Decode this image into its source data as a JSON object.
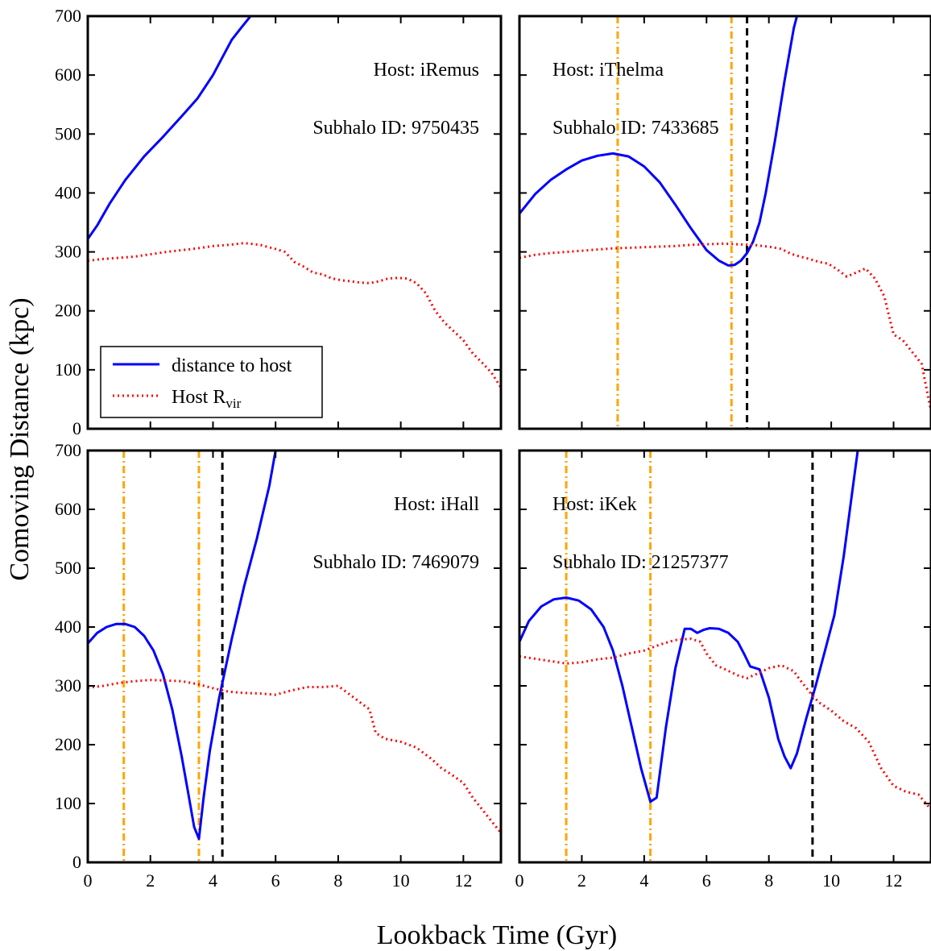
{
  "figure": {
    "xlabel": "Lookback Time (Gyr)",
    "ylabel": "Comoving Distance (kpc)"
  },
  "legend": {
    "items": [
      {
        "label": "distance to host",
        "label_main": "distance to host",
        "label_sub": "",
        "color": "#0000ff",
        "style": "solid"
      },
      {
        "label": "Host Rvir",
        "label_main": "Host R",
        "label_sub": "vir",
        "color": "#ff0000",
        "style": "dotted"
      }
    ]
  },
  "colors": {
    "distance": "#0000ff",
    "rvir": "#ff0000",
    "pericenter": "#ffa500",
    "infall": "#000000"
  },
  "chart_data": [
    {
      "type": "line",
      "host_label": "Host: iRemus",
      "subhalo_label": "Subhalo ID: 9750435",
      "xlim": [
        0,
        13.2
      ],
      "ylim": [
        0,
        700
      ],
      "xticks": [
        0,
        2,
        4,
        6,
        8,
        10,
        12
      ],
      "yticks": [
        0,
        100,
        200,
        300,
        400,
        500,
        600,
        700
      ],
      "series": [
        {
          "name": "distance to host",
          "x": [
            0,
            0.3,
            0.7,
            1.2,
            1.8,
            2.4,
            3.0,
            3.5,
            4.0,
            4.3,
            4.6,
            4.9,
            5.2,
            5.45
          ],
          "y": [
            322,
            345,
            382,
            422,
            462,
            495,
            530,
            560,
            600,
            630,
            660,
            680,
            700,
            720
          ]
        },
        {
          "name": "Host Rvir",
          "x": [
            0,
            0.5,
            1,
            1.5,
            2,
            2.5,
            3,
            3.5,
            4,
            4.5,
            5,
            5.5,
            6,
            6.3,
            6.6,
            6.9,
            7.2,
            7.5,
            7.8,
            8.1,
            8.4,
            8.7,
            9,
            9.3,
            9.6,
            9.9,
            10.2,
            10.5,
            10.8,
            11.1,
            11.4,
            11.7,
            12,
            12.3,
            12.6,
            12.9,
            13.2
          ],
          "y": [
            285,
            288,
            290,
            292,
            296,
            300,
            303,
            306,
            310,
            312,
            315,
            312,
            305,
            300,
            283,
            275,
            265,
            262,
            255,
            252,
            250,
            248,
            247,
            250,
            255,
            256,
            255,
            247,
            230,
            200,
            180,
            165,
            150,
            128,
            112,
            95,
            70
          ]
        }
      ],
      "vlines": []
    },
    {
      "type": "line",
      "host_label": "Host: iThelma",
      "subhalo_label": "Subhalo ID: 7433685",
      "xlim": [
        0,
        13.2
      ],
      "ylim": [
        0,
        700
      ],
      "xticks": [
        0,
        2,
        4,
        6,
        8,
        10,
        12
      ],
      "yticks": [
        0,
        100,
        200,
        300,
        400,
        500,
        600,
        700
      ],
      "series": [
        {
          "name": "distance to host",
          "x": [
            0,
            0.5,
            1.0,
            1.5,
            2.0,
            2.5,
            3.0,
            3.5,
            4.0,
            4.5,
            5.0,
            5.5,
            6.0,
            6.4,
            6.7,
            6.9,
            7.1,
            7.3,
            7.5,
            7.7,
            7.9,
            8.2,
            8.5,
            8.8,
            9.0,
            9.2
          ],
          "y": [
            365,
            398,
            422,
            440,
            455,
            463,
            467,
            462,
            445,
            418,
            380,
            340,
            303,
            285,
            277,
            278,
            285,
            298,
            318,
            350,
            400,
            490,
            590,
            680,
            720,
            760
          ]
        },
        {
          "name": "Host Rvir",
          "x": [
            0,
            0.5,
            1,
            1.5,
            2,
            2.5,
            3,
            3.5,
            4,
            4.5,
            5,
            5.5,
            6,
            6.5,
            7,
            7.5,
            7.8,
            8.1,
            8.4,
            8.7,
            9,
            9.3,
            9.6,
            9.9,
            10.2,
            10.5,
            10.8,
            11.1,
            11.4,
            11.7,
            12,
            12.3,
            12.6,
            12.9,
            13.2
          ],
          "y": [
            290,
            295,
            298,
            300,
            302,
            304,
            306,
            307,
            308,
            309,
            310,
            312,
            313,
            314,
            313,
            312,
            310,
            308,
            305,
            297,
            292,
            288,
            283,
            280,
            270,
            258,
            265,
            272,
            255,
            225,
            160,
            150,
            130,
            110,
            30
          ]
        }
      ],
      "vlines": [
        {
          "x": 3.15,
          "kind": "pericenter"
        },
        {
          "x": 6.8,
          "kind": "pericenter"
        },
        {
          "x": 7.3,
          "kind": "infall"
        }
      ]
    },
    {
      "type": "line",
      "host_label": "Host: iHall",
      "subhalo_label": "Subhalo ID: 7469079",
      "xlim": [
        0,
        13.2
      ],
      "ylim": [
        0,
        700
      ],
      "xticks": [
        0,
        2,
        4,
        6,
        8,
        10,
        12
      ],
      "yticks": [
        0,
        100,
        200,
        300,
        400,
        500,
        600,
        700
      ],
      "series": [
        {
          "name": "distance to host",
          "x": [
            0,
            0.3,
            0.6,
            0.9,
            1.2,
            1.5,
            1.8,
            2.1,
            2.4,
            2.7,
            3.0,
            3.2,
            3.4,
            3.55,
            3.7,
            3.9,
            4.2,
            4.6,
            5.0,
            5.4,
            5.8,
            6.0
          ],
          "y": [
            372,
            390,
            400,
            405,
            405,
            400,
            385,
            360,
            320,
            260,
            180,
            120,
            60,
            40,
            110,
            190,
            280,
            380,
            470,
            550,
            640,
            700
          ]
        },
        {
          "name": "Host Rvir",
          "x": [
            0,
            0.5,
            1,
            1.5,
            2,
            2.5,
            3,
            3.5,
            4,
            4.5,
            5,
            5.5,
            6,
            6.5,
            7,
            7.5,
            8,
            8.5,
            9,
            9.2,
            9.5,
            10,
            10.5,
            11,
            11.3,
            11.6,
            12,
            12.3,
            12.6,
            12.9,
            13.2
          ],
          "y": [
            297,
            300,
            305,
            308,
            310,
            309,
            308,
            303,
            296,
            290,
            288,
            287,
            285,
            292,
            298,
            298,
            300,
            280,
            260,
            220,
            210,
            205,
            195,
            175,
            160,
            150,
            135,
            110,
            90,
            70,
            50
          ]
        }
      ],
      "vlines": [
        {
          "x": 1.15,
          "kind": "pericenter"
        },
        {
          "x": 3.55,
          "kind": "pericenter"
        },
        {
          "x": 4.3,
          "kind": "infall"
        }
      ]
    },
    {
      "type": "line",
      "host_label": "Host: iKek",
      "subhalo_label": "Subhalo ID: 21257377",
      "xlim": [
        0,
        13.2
      ],
      "ylim": [
        0,
        700
      ],
      "xticks": [
        0,
        2,
        4,
        6,
        8,
        10,
        12
      ],
      "yticks": [
        0,
        100,
        200,
        300,
        400,
        500,
        600,
        700
      ],
      "series": [
        {
          "name": "distance to host",
          "x": [
            0,
            0.3,
            0.7,
            1.1,
            1.5,
            1.9,
            2.3,
            2.7,
            3.0,
            3.3,
            3.6,
            3.9,
            4.2,
            4.4,
            4.7,
            5.0,
            5.3,
            5.5,
            5.7,
            5.9,
            6.1,
            6.4,
            6.7,
            7.0,
            7.2,
            7.4,
            7.7,
            8.0,
            8.3,
            8.5,
            8.7,
            8.9,
            9.2,
            9.5,
            9.8,
            10.1,
            10.4,
            10.7,
            10.9
          ],
          "y": [
            375,
            410,
            435,
            447,
            450,
            445,
            430,
            400,
            360,
            300,
            230,
            160,
            103,
            110,
            230,
            330,
            397,
            397,
            390,
            395,
            398,
            397,
            390,
            375,
            355,
            333,
            328,
            280,
            210,
            180,
            160,
            185,
            245,
            300,
            360,
            420,
            520,
            640,
            720
          ]
        },
        {
          "name": "Host Rvir",
          "x": [
            0,
            0.5,
            1,
            1.5,
            2,
            2.5,
            3,
            3.5,
            4,
            4.5,
            5,
            5.5,
            5.8,
            6.0,
            6.3,
            6.6,
            7.0,
            7.3,
            7.6,
            8.0,
            8.4,
            8.8,
            9.0,
            9.3,
            9.6,
            10.0,
            10.4,
            10.8,
            11.2,
            11.6,
            12.0,
            12.4,
            12.8,
            13.2
          ],
          "y": [
            350,
            346,
            342,
            338,
            340,
            345,
            348,
            355,
            360,
            370,
            378,
            380,
            375,
            355,
            335,
            328,
            318,
            313,
            320,
            330,
            335,
            325,
            310,
            290,
            272,
            258,
            240,
            228,
            205,
            160,
            130,
            120,
            115,
            90
          ]
        }
      ],
      "vlines": [
        {
          "x": 1.5,
          "kind": "pericenter"
        },
        {
          "x": 4.2,
          "kind": "pericenter"
        },
        {
          "x": 9.4,
          "kind": "infall"
        }
      ]
    }
  ]
}
